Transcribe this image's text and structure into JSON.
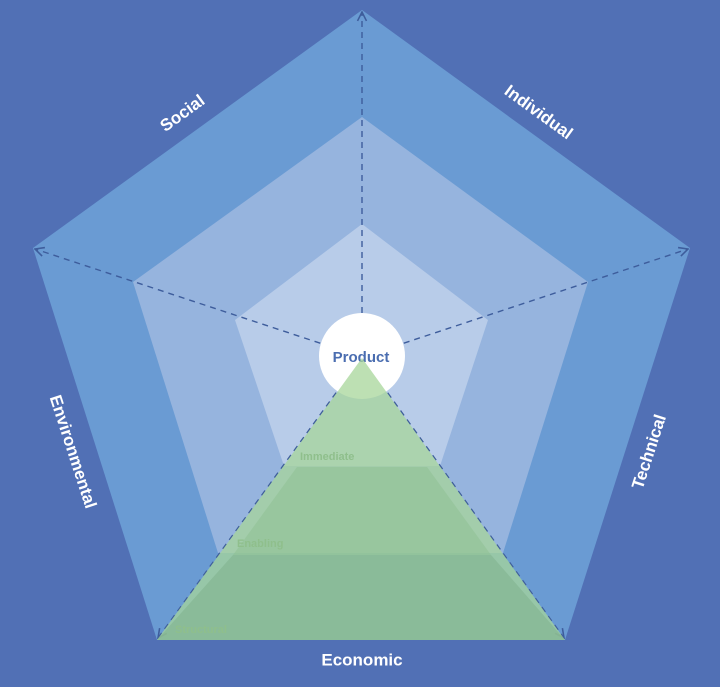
{
  "center": {
    "label": "Product"
  },
  "dimensions": [
    "Social",
    "Individual",
    "Technical",
    "Economic",
    "Environmental"
  ],
  "layers": [
    "Immediate",
    "Enabling",
    "Structural"
  ]
}
